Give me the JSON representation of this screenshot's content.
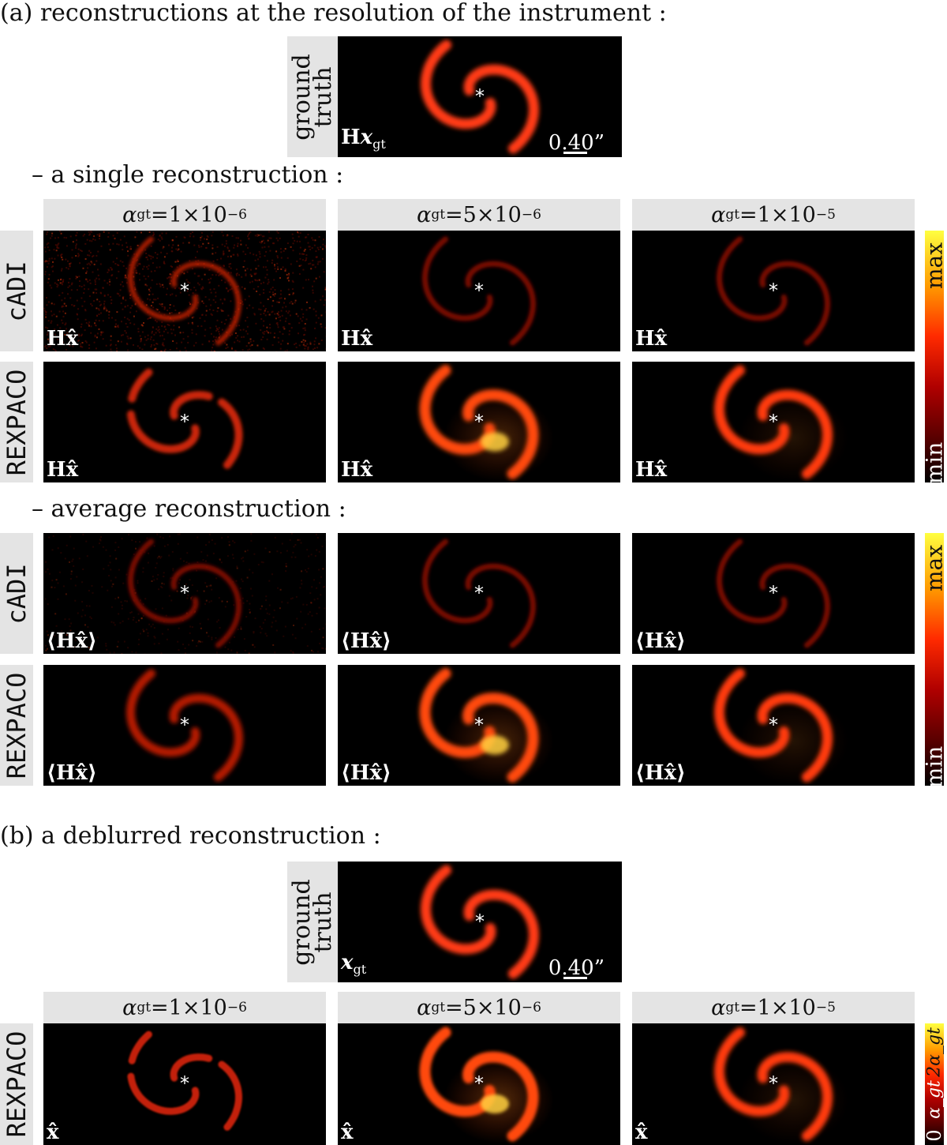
{
  "headings": {
    "a": "(a) reconstructions at the resolution of the instrument :",
    "single": "– a single reconstruction :",
    "average": "– average reconstruction :",
    "b": "(b) a deblurred reconstruction :"
  },
  "ground_truth_label": [
    "ground",
    "truth"
  ],
  "scale_bar": "0.40”",
  "columns": [
    {
      "alpha_label": "α",
      "alpha_sub": "gt",
      "alpha_value": "=1×10",
      "alpha_exp": "−6"
    },
    {
      "alpha_label": "α",
      "alpha_sub": "gt",
      "alpha_value": "=5×10",
      "alpha_exp": "−6"
    },
    {
      "alpha_label": "α",
      "alpha_sub": "gt",
      "alpha_value": "=1×10",
      "alpha_exp": "−5"
    }
  ],
  "methods": {
    "cadi": "cADI",
    "rexpaco": "REXPACO"
  },
  "panel_labels": {
    "gt_blur": "Hx_gt",
    "single": "Hx̂",
    "average": "⟨Hx̂⟩",
    "gt_deblur": "x_gt",
    "deblur": "x̂"
  },
  "colorbar": {
    "max": "max",
    "min": "min",
    "deblur_zero": "0",
    "deblur_mid": "α_gt",
    "deblur_top": "2α_gt"
  },
  "star_marker": "*"
}
